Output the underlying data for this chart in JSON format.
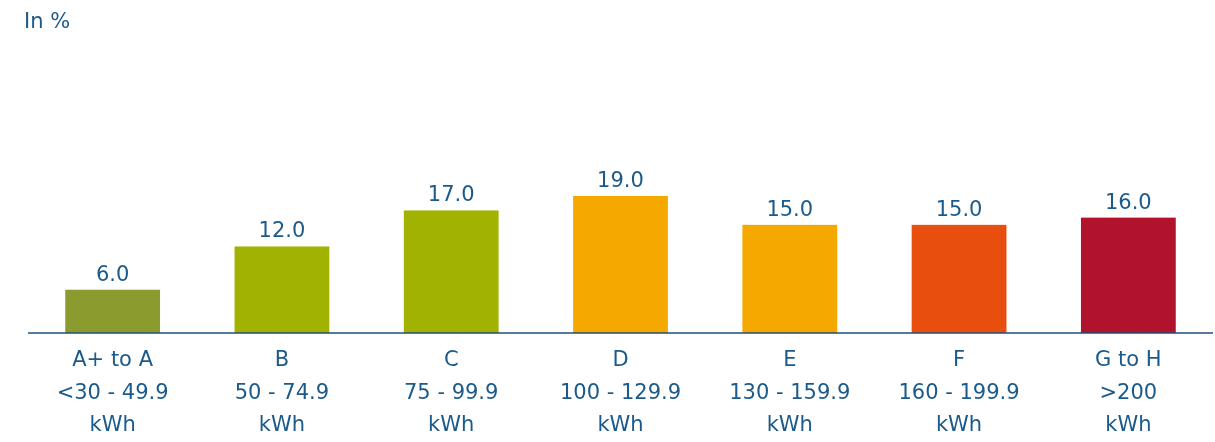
{
  "chart_data": {
    "type": "bar",
    "annotations": [
      "In %"
    ],
    "categories": [
      "A+ to A\n<30 - 49.9\nkWh",
      "B\n50 - 74.9\nkWh",
      "C\n75 - 99.9\nkWh",
      "D\n100 - 129.9\nkWh",
      "E\n130 - 159.9\nkWh",
      "F\n160 - 199.9\nkWh",
      "G to H\n>200\nkWh"
    ],
    "values": [
      6.0,
      12.0,
      17.0,
      19.0,
      15.0,
      15.0,
      16.0
    ],
    "value_labels": [
      "6.0",
      "12.0",
      "17.0",
      "19.0",
      "15.0",
      "15.0",
      "16.0"
    ],
    "colors": [
      "#8b9b2e",
      "#a2b200",
      "#a2b200",
      "#f5a800",
      "#f5a800",
      "#e84e0e",
      "#b0132b"
    ]
  }
}
